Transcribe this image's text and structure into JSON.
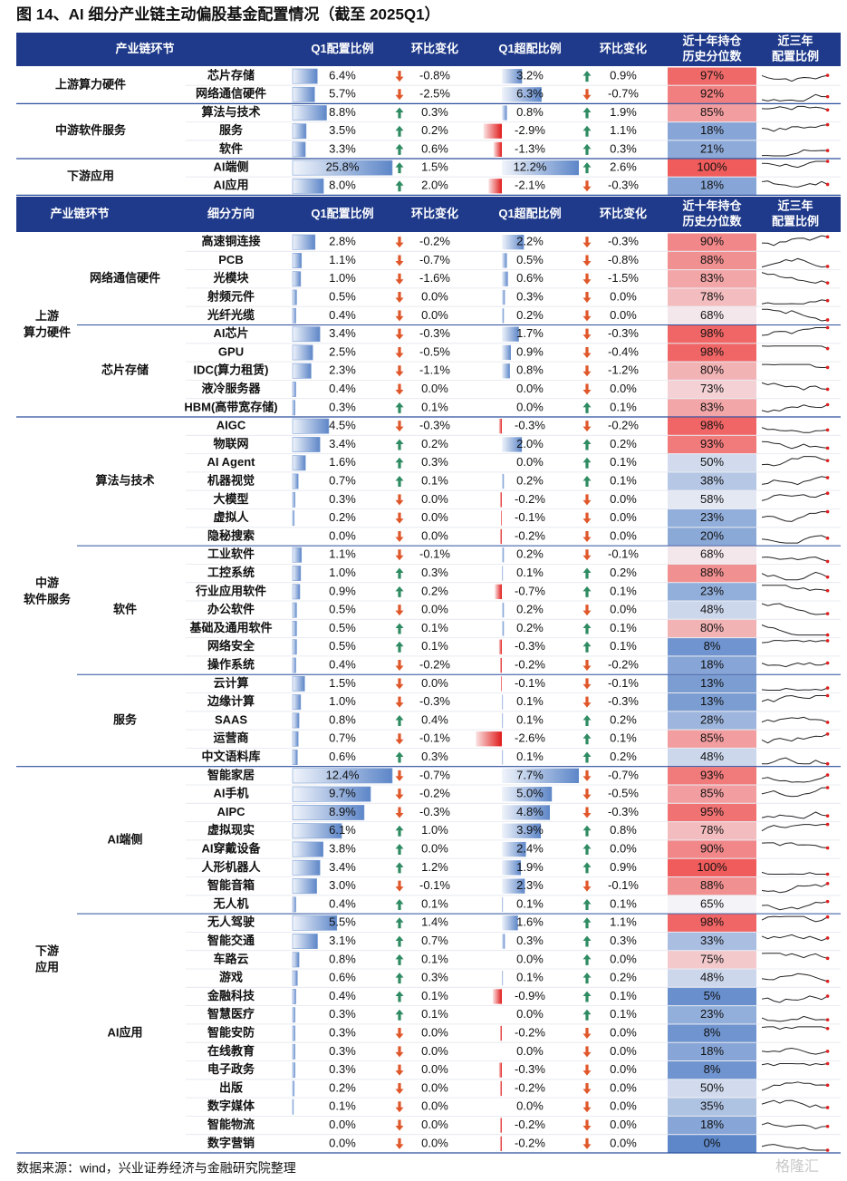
{
  "title": "图 14、AI 细分产业链主动偏股基金配置情况（截至 2025Q1）",
  "footer": "数据来源：wind，兴业证券经济与金融研究院整理",
  "watermark": "格隆汇",
  "table1": {
    "header": [
      [
        "产业链环节"
      ],
      [
        "Q1配置比例"
      ],
      [
        "环比变化"
      ],
      [
        "Q1超配比例"
      ],
      [
        "环比变化"
      ],
      [
        "近十年持仓",
        "历史分位数"
      ],
      [
        "近三年",
        "配置比例"
      ]
    ],
    "groups": [
      {
        "name": [
          "上游算力硬件"
        ],
        "rows": [
          [
            "芯片存储",
            "6.4%",
            "down",
            "-0.8%",
            "3.2%",
            "up",
            "0.9%",
            "97%"
          ],
          [
            "网络通信硬件",
            "5.7%",
            "down",
            "-2.5%",
            "6.3%",
            "down",
            "-0.7%",
            "92%"
          ]
        ]
      },
      {
        "name": [
          "中游软件服务"
        ],
        "rows": [
          [
            "算法与技术",
            "8.8%",
            "up",
            "0.3%",
            "0.8%",
            "up",
            "1.9%",
            "85%"
          ],
          [
            "服务",
            "3.5%",
            "up",
            "0.2%",
            "-2.9%",
            "up",
            "1.1%",
            "18%"
          ],
          [
            "软件",
            "3.3%",
            "up",
            "0.6%",
            "-1.3%",
            "up",
            "0.3%",
            "21%"
          ]
        ]
      },
      {
        "name": [
          "下游应用"
        ],
        "rows": [
          [
            "AI端侧",
            "25.8%",
            "up",
            "1.5%",
            "12.2%",
            "up",
            "2.6%",
            "100%"
          ],
          [
            "AI应用",
            "8.0%",
            "up",
            "2.0%",
            "-2.1%",
            "down",
            "-0.3%",
            "18%"
          ]
        ]
      }
    ]
  },
  "table2": {
    "header": [
      [
        "产业链环节"
      ],
      [
        "细分方向"
      ],
      [
        "Q1配置比例"
      ],
      [
        "环比变化"
      ],
      [
        "Q1超配比例"
      ],
      [
        "环比变化"
      ],
      [
        "近十年持仓",
        "历史分位数"
      ],
      [
        "近三年",
        "配置比例"
      ]
    ],
    "groups": [
      {
        "name": [
          "上游",
          "算力硬件"
        ],
        "subgroups": [
          {
            "name": "网络通信硬件",
            "rows": [
              [
                "高速铜连接",
                "2.8%",
                "down",
                "-0.2%",
                "2.2%",
                "down",
                "-0.3%",
                "90%"
              ],
              [
                "PCB",
                "1.1%",
                "down",
                "-0.7%",
                "0.5%",
                "down",
                "-0.8%",
                "88%"
              ],
              [
                "光模块",
                "1.0%",
                "down",
                "-1.6%",
                "0.6%",
                "down",
                "-1.5%",
                "83%"
              ],
              [
                "射频元件",
                "0.5%",
                "down",
                "0.0%",
                "0.3%",
                "down",
                "0.0%",
                "78%"
              ],
              [
                "光纤光缆",
                "0.4%",
                "down",
                "0.0%",
                "0.2%",
                "down",
                "0.0%",
                "68%"
              ]
            ]
          },
          {
            "name": "芯片存储",
            "rows": [
              [
                "AI芯片",
                "3.4%",
                "down",
                "-0.3%",
                "1.7%",
                "down",
                "-0.3%",
                "98%"
              ],
              [
                "GPU",
                "2.5%",
                "down",
                "-0.5%",
                "0.9%",
                "down",
                "-0.4%",
                "98%"
              ],
              [
                "IDC(算力租赁)",
                "2.3%",
                "down",
                "-1.1%",
                "0.8%",
                "down",
                "-1.2%",
                "80%"
              ],
              [
                "液冷服务器",
                "0.4%",
                "down",
                "0.0%",
                "0.0%",
                "down",
                "0.0%",
                "73%"
              ],
              [
                "HBM(高带宽存储)",
                "0.3%",
                "up",
                "0.1%",
                "0.0%",
                "up",
                "0.1%",
                "83%"
              ]
            ]
          }
        ]
      },
      {
        "name": [
          "中游",
          "软件服务"
        ],
        "subgroups": [
          {
            "name": "算法与技术",
            "rows": [
              [
                "AIGC",
                "4.5%",
                "down",
                "-0.3%",
                "-0.3%",
                "down",
                "-0.2%",
                "98%"
              ],
              [
                "物联网",
                "3.4%",
                "up",
                "0.2%",
                "2.0%",
                "up",
                "0.2%",
                "93%"
              ],
              [
                "AI Agent",
                "1.6%",
                "up",
                "0.3%",
                "0.0%",
                "up",
                "0.1%",
                "50%"
              ],
              [
                "机器视觉",
                "0.7%",
                "up",
                "0.1%",
                "0.2%",
                "up",
                "0.1%",
                "38%"
              ],
              [
                "大模型",
                "0.3%",
                "down",
                "0.0%",
                "-0.2%",
                "down",
                "0.0%",
                "58%"
              ],
              [
                "虚拟人",
                "0.2%",
                "down",
                "0.0%",
                "-0.1%",
                "down",
                "0.0%",
                "23%"
              ],
              [
                "隐秘搜索",
                "0.0%",
                "down",
                "0.0%",
                "-0.2%",
                "down",
                "0.0%",
                "20%"
              ]
            ]
          },
          {
            "name": "软件",
            "rows": [
              [
                "工业软件",
                "1.1%",
                "down",
                "-0.1%",
                "0.2%",
                "down",
                "-0.1%",
                "68%"
              ],
              [
                "工控系统",
                "1.0%",
                "up",
                "0.3%",
                "0.1%",
                "up",
                "0.2%",
                "88%"
              ],
              [
                "行业应用软件",
                "0.9%",
                "up",
                "0.2%",
                "-0.7%",
                "up",
                "0.1%",
                "23%"
              ],
              [
                "办公软件",
                "0.5%",
                "down",
                "0.0%",
                "0.2%",
                "down",
                "0.0%",
                "48%"
              ],
              [
                "基础及通用软件",
                "0.5%",
                "up",
                "0.1%",
                "0.2%",
                "up",
                "0.1%",
                "80%"
              ],
              [
                "网络安全",
                "0.5%",
                "up",
                "0.1%",
                "-0.3%",
                "up",
                "0.1%",
                "8%"
              ],
              [
                "操作系统",
                "0.4%",
                "down",
                "-0.2%",
                "-0.2%",
                "down",
                "-0.2%",
                "18%"
              ]
            ]
          },
          {
            "name": "服务",
            "rows": [
              [
                "云计算",
                "1.5%",
                "down",
                "0.0%",
                "-0.1%",
                "down",
                "-0.1%",
                "13%"
              ],
              [
                "边缘计算",
                "1.0%",
                "down",
                "-0.3%",
                "0.1%",
                "down",
                "-0.3%",
                "13%"
              ],
              [
                "SAAS",
                "0.8%",
                "up",
                "0.4%",
                "0.1%",
                "up",
                "0.2%",
                "28%"
              ],
              [
                "运营商",
                "0.7%",
                "down",
                "-0.1%",
                "-2.6%",
                "up",
                "0.1%",
                "85%"
              ],
              [
                "中文语料库",
                "0.6%",
                "up",
                "0.3%",
                "0.1%",
                "up",
                "0.2%",
                "48%"
              ]
            ]
          }
        ]
      },
      {
        "name": [
          "下游",
          "应用"
        ],
        "subgroups": [
          {
            "name": "AI端侧",
            "rows": [
              [
                "智能家居",
                "12.4%",
                "down",
                "-0.7%",
                "7.7%",
                "down",
                "-0.7%",
                "93%"
              ],
              [
                "AI手机",
                "9.7%",
                "down",
                "-0.2%",
                "5.0%",
                "down",
                "-0.5%",
                "85%"
              ],
              [
                "AIPC",
                "8.9%",
                "down",
                "-0.3%",
                "4.8%",
                "down",
                "-0.3%",
                "95%"
              ],
              [
                "虚拟现实",
                "6.1%",
                "up",
                "1.0%",
                "3.9%",
                "up",
                "0.8%",
                "78%"
              ],
              [
                "AI穿戴设备",
                "3.8%",
                "up",
                "0.0%",
                "2.4%",
                "up",
                "0.0%",
                "90%"
              ],
              [
                "人形机器人",
                "3.4%",
                "up",
                "1.2%",
                "1.9%",
                "up",
                "0.9%",
                "100%"
              ],
              [
                "智能音箱",
                "3.0%",
                "down",
                "-0.1%",
                "2.3%",
                "down",
                "-0.1%",
                "88%"
              ],
              [
                "无人机",
                "0.4%",
                "up",
                "0.1%",
                "0.1%",
                "up",
                "0.1%",
                "65%"
              ]
            ]
          },
          {
            "name": "AI应用",
            "rows": [
              [
                "无人驾驶",
                "5.5%",
                "up",
                "1.4%",
                "1.6%",
                "up",
                "1.1%",
                "98%"
              ],
              [
                "智能交通",
                "3.1%",
                "up",
                "0.7%",
                "0.3%",
                "up",
                "0.3%",
                "33%"
              ],
              [
                "车路云",
                "0.8%",
                "up",
                "0.1%",
                "0.0%",
                "up",
                "0.0%",
                "75%"
              ],
              [
                "游戏",
                "0.6%",
                "up",
                "0.3%",
                "0.1%",
                "up",
                "0.2%",
                "48%"
              ],
              [
                "金融科技",
                "0.4%",
                "up",
                "0.1%",
                "-0.9%",
                "up",
                "0.1%",
                "5%"
              ],
              [
                "智慧医疗",
                "0.3%",
                "up",
                "0.1%",
                "0.0%",
                "up",
                "0.1%",
                "23%"
              ],
              [
                "智能安防",
                "0.3%",
                "down",
                "0.0%",
                "-0.2%",
                "down",
                "0.0%",
                "8%"
              ],
              [
                "在线教育",
                "0.3%",
                "down",
                "0.0%",
                "0.0%",
                "down",
                "0.0%",
                "18%"
              ],
              [
                "电子政务",
                "0.3%",
                "down",
                "0.0%",
                "-0.3%",
                "down",
                "0.0%",
                "8%"
              ],
              [
                "出版",
                "0.2%",
                "down",
                "0.0%",
                "-0.2%",
                "down",
                "0.0%",
                "50%"
              ],
              [
                "数字媒体",
                "0.1%",
                "down",
                "0.0%",
                "0.0%",
                "down",
                "0.0%",
                "35%"
              ],
              [
                "智能物流",
                "0.0%",
                "down",
                "0.0%",
                "-0.2%",
                "down",
                "0.0%",
                "18%"
              ],
              [
                "数字营销",
                "0.0%",
                "down",
                "0.0%",
                "-0.2%",
                "down",
                "0.0%",
                "0%"
              ]
            ]
          }
        ]
      }
    ]
  }
}
